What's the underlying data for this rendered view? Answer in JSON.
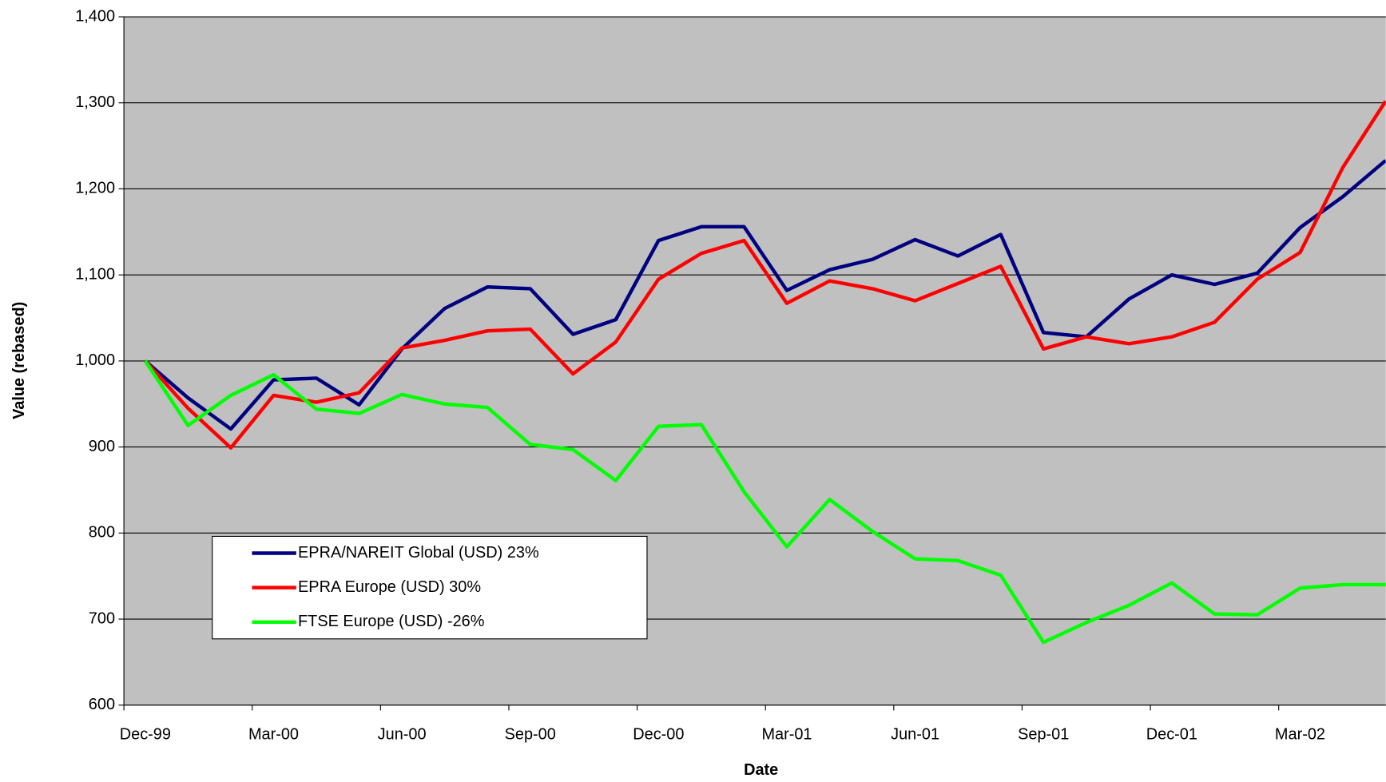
{
  "chart_data": {
    "type": "line",
    "x_label": "Date",
    "y_label": "Value (rebased)",
    "categories": [
      "Dec-99",
      null,
      null,
      "Mar-00",
      null,
      null,
      "Jun-00",
      null,
      null,
      "Sep-00",
      null,
      null,
      "Dec-00",
      null,
      null,
      "Mar-01",
      null,
      null,
      "Jun-01",
      null,
      null,
      "Sep-01",
      null,
      null,
      "Dec-01",
      null,
      null,
      "Mar-02",
      null,
      null
    ],
    "series": [
      {
        "name": "EPRA/NAREIT Global (USD) 23%",
        "color": "#000080",
        "values": [
          1000,
          957,
          921,
          978,
          980,
          949,
          1014,
          1061,
          1086,
          1084,
          1031,
          1048,
          1140,
          1156,
          1156,
          1082,
          1106,
          1118,
          1141,
          1122,
          1147,
          1033,
          1028,
          1072,
          1100,
          1089,
          1102,
          1155,
          1191,
          1233
        ]
      },
      {
        "name": "EPRA Europe (USD) 30%",
        "color": "#ff0000",
        "values": [
          1000,
          945,
          899,
          960,
          952,
          963,
          1015,
          1024,
          1035,
          1037,
          985,
          1022,
          1095,
          1125,
          1140,
          1067,
          1093,
          1084,
          1070,
          1090,
          1110,
          1014,
          1028,
          1020,
          1028,
          1045,
          1095,
          1126,
          1225,
          1302
        ]
      },
      {
        "name": "FTSE Europe (USD) -26%",
        "color": "#00ff00",
        "values": [
          1000,
          925,
          960,
          984,
          944,
          939,
          961,
          950,
          946,
          903,
          897,
          861,
          924,
          926,
          848,
          784,
          839,
          802,
          770,
          768,
          751,
          673,
          696,
          716,
          742,
          706,
          705,
          736,
          740,
          740
        ]
      }
    ],
    "ylim": [
      600,
      1400
    ],
    "yticks": [
      600,
      700,
      800,
      900,
      {
        "value": 1000,
        "label": "1,000"
      },
      {
        "value": 1100,
        "label": "1,100"
      },
      {
        "value": 1200,
        "label": "1,200"
      },
      {
        "value": 1300,
        "label": "1,300"
      },
      {
        "value": 1400,
        "label": "1,400"
      }
    ],
    "grid": true,
    "plot_background": "#c0c0c0",
    "legend": "lower left"
  }
}
